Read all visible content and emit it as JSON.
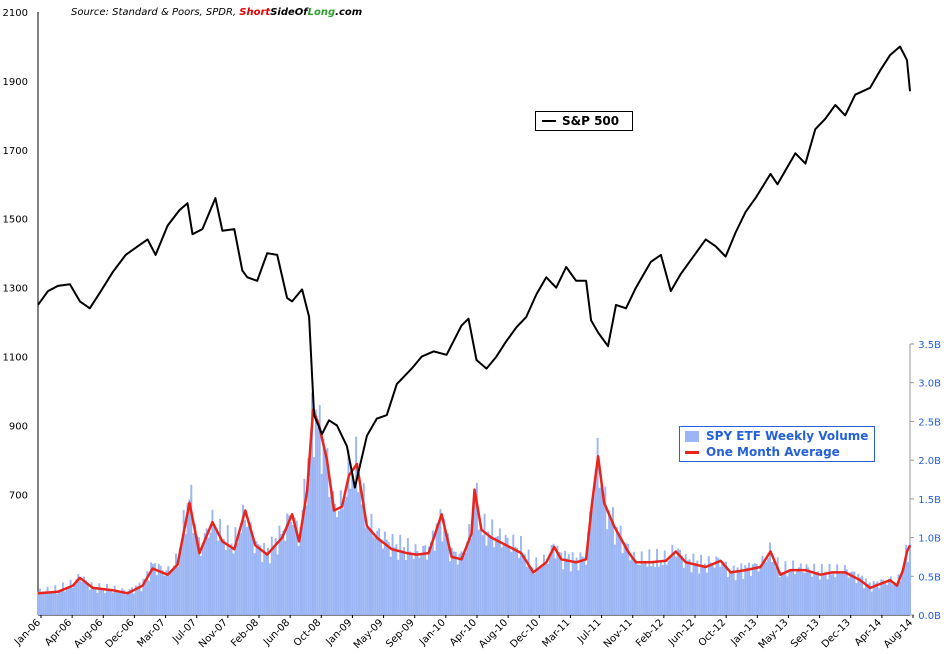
{
  "source": {
    "prefix": "Source: Standard & Poors, SPDR, ",
    "brand_short": "Short",
    "brand_side": "SideOf",
    "brand_long": "Long",
    "brand_com": ".com"
  },
  "colors": {
    "sp500": "#000000",
    "volume": "#9bb5f5",
    "average": "#e8251c",
    "right_axis": "#2461d9",
    "grid": "#d9d9d9"
  },
  "legend_sp500": "S&P 500",
  "legend_volume": "SPY ETF Weekly Volume",
  "legend_average": "One Month Average",
  "chart_data": {
    "type": "line+bar",
    "left_axis": {
      "ticks": [
        700,
        900,
        1100,
        1300,
        1500,
        1700,
        1900,
        2100
      ],
      "labels": [
        "700",
        "900",
        "1100",
        "1300",
        "1500",
        "1700",
        "1900",
        "2100"
      ],
      "range": [
        350,
        2100
      ]
    },
    "right_axis": {
      "ticks": [
        0,
        0.5,
        1.0,
        1.5,
        2.0,
        2.5,
        3.0,
        3.5
      ],
      "labels": [
        "0.0B",
        "0.5B",
        "1.0B",
        "1.5B",
        "2.0B",
        "2.5B",
        "3.0B",
        "3.5B"
      ],
      "range": [
        0,
        3.5
      ],
      "unit": "B"
    },
    "x_labels": [
      "Jan-06",
      "Apr-06",
      "Aug-06",
      "Dec-06",
      "Mar-07",
      "Jul-07",
      "Nov-07",
      "Feb-08",
      "Jun-08",
      "Oct-08",
      "Jan-09",
      "May-09",
      "Sep-09",
      "Jan-10",
      "Apr-10",
      "Aug-10",
      "Dec-10",
      "Mar-11",
      "Jul-11",
      "Nov-11",
      "Feb-12",
      "Jun-12",
      "Oct-12",
      "Jan-13",
      "May-13",
      "Sep-13",
      "Dec-13",
      "Apr-14",
      "Aug-14"
    ],
    "x_range_years": [
      2006.0,
      2014.75
    ],
    "series": [
      {
        "name": "S&P 500",
        "axis": "left",
        "points": [
          [
            2006.0,
            1250
          ],
          [
            2006.1,
            1290
          ],
          [
            2006.2,
            1305
          ],
          [
            2006.32,
            1310
          ],
          [
            2006.42,
            1260
          ],
          [
            2006.52,
            1240
          ],
          [
            2006.62,
            1285
          ],
          [
            2006.75,
            1345
          ],
          [
            2006.88,
            1395
          ],
          [
            2007.0,
            1420
          ],
          [
            2007.1,
            1440
          ],
          [
            2007.18,
            1395
          ],
          [
            2007.3,
            1480
          ],
          [
            2007.42,
            1525
          ],
          [
            2007.5,
            1545
          ],
          [
            2007.55,
            1455
          ],
          [
            2007.65,
            1470
          ],
          [
            2007.78,
            1560
          ],
          [
            2007.85,
            1465
          ],
          [
            2007.97,
            1470
          ],
          [
            2008.05,
            1350
          ],
          [
            2008.1,
            1330
          ],
          [
            2008.2,
            1320
          ],
          [
            2008.3,
            1400
          ],
          [
            2008.4,
            1395
          ],
          [
            2008.5,
            1270
          ],
          [
            2008.55,
            1260
          ],
          [
            2008.65,
            1295
          ],
          [
            2008.72,
            1215
          ],
          [
            2008.77,
            930
          ],
          [
            2008.85,
            875
          ],
          [
            2008.92,
            915
          ],
          [
            2009.0,
            900
          ],
          [
            2009.1,
            840
          ],
          [
            2009.18,
            720
          ],
          [
            2009.3,
            870
          ],
          [
            2009.4,
            920
          ],
          [
            2009.5,
            930
          ],
          [
            2009.6,
            1020
          ],
          [
            2009.75,
            1065
          ],
          [
            2009.85,
            1100
          ],
          [
            2009.97,
            1115
          ],
          [
            2010.1,
            1105
          ],
          [
            2010.25,
            1190
          ],
          [
            2010.32,
            1210
          ],
          [
            2010.4,
            1090
          ],
          [
            2010.5,
            1065
          ],
          [
            2010.6,
            1100
          ],
          [
            2010.7,
            1145
          ],
          [
            2010.8,
            1185
          ],
          [
            2010.9,
            1215
          ],
          [
            2011.0,
            1280
          ],
          [
            2011.1,
            1330
          ],
          [
            2011.2,
            1300
          ],
          [
            2011.3,
            1360
          ],
          [
            2011.4,
            1320
          ],
          [
            2011.5,
            1320
          ],
          [
            2011.55,
            1205
          ],
          [
            2011.62,
            1170
          ],
          [
            2011.72,
            1130
          ],
          [
            2011.8,
            1250
          ],
          [
            2011.9,
            1240
          ],
          [
            2012.0,
            1300
          ],
          [
            2012.15,
            1375
          ],
          [
            2012.25,
            1395
          ],
          [
            2012.35,
            1290
          ],
          [
            2012.45,
            1340
          ],
          [
            2012.55,
            1380
          ],
          [
            2012.7,
            1440
          ],
          [
            2012.8,
            1420
          ],
          [
            2012.9,
            1390
          ],
          [
            2013.0,
            1460
          ],
          [
            2013.1,
            1520
          ],
          [
            2013.2,
            1560
          ],
          [
            2013.35,
            1630
          ],
          [
            2013.42,
            1600
          ],
          [
            2013.5,
            1640
          ],
          [
            2013.6,
            1690
          ],
          [
            2013.7,
            1660
          ],
          [
            2013.8,
            1760
          ],
          [
            2013.9,
            1790
          ],
          [
            2014.0,
            1830
          ],
          [
            2014.1,
            1800
          ],
          [
            2014.2,
            1860
          ],
          [
            2014.35,
            1880
          ],
          [
            2014.45,
            1930
          ],
          [
            2014.55,
            1975
          ],
          [
            2014.65,
            2000
          ],
          [
            2014.72,
            1960
          ],
          [
            2014.75,
            1870
          ]
        ]
      },
      {
        "name": "SPY ETF Weekly Volume",
        "axis": "right",
        "points": [
          [
            2006.0,
            0.3
          ],
          [
            2006.2,
            0.32
          ],
          [
            2006.35,
            0.4
          ],
          [
            2006.42,
            0.5
          ],
          [
            2006.55,
            0.35
          ],
          [
            2006.75,
            0.33
          ],
          [
            2006.9,
            0.3
          ],
          [
            2007.05,
            0.4
          ],
          [
            2007.15,
            0.65
          ],
          [
            2007.3,
            0.55
          ],
          [
            2007.4,
            0.7
          ],
          [
            2007.52,
            1.55
          ],
          [
            2007.62,
            0.85
          ],
          [
            2007.75,
            1.2
          ],
          [
            2007.85,
            1.0
          ],
          [
            2007.97,
            0.9
          ],
          [
            2008.08,
            1.3
          ],
          [
            2008.18,
            0.9
          ],
          [
            2008.3,
            0.8
          ],
          [
            2008.45,
            1.05
          ],
          [
            2008.55,
            1.3
          ],
          [
            2008.62,
            1.0
          ],
          [
            2008.7,
            1.8
          ],
          [
            2008.76,
            2.6
          ],
          [
            2008.82,
            2.4
          ],
          [
            2008.9,
            2.0
          ],
          [
            2008.97,
            1.4
          ],
          [
            2009.05,
            1.4
          ],
          [
            2009.12,
            1.8
          ],
          [
            2009.2,
            1.9
          ],
          [
            2009.3,
            1.2
          ],
          [
            2009.4,
            1.05
          ],
          [
            2009.55,
            0.9
          ],
          [
            2009.7,
            0.85
          ],
          [
            2009.8,
            0.8
          ],
          [
            2009.92,
            0.85
          ],
          [
            2010.05,
            1.25
          ],
          [
            2010.15,
            0.8
          ],
          [
            2010.25,
            0.75
          ],
          [
            2010.35,
            1.1
          ],
          [
            2010.38,
            1.6
          ],
          [
            2010.45,
            1.1
          ],
          [
            2010.55,
            1.05
          ],
          [
            2010.7,
            0.95
          ],
          [
            2010.85,
            0.85
          ],
          [
            2010.97,
            0.6
          ],
          [
            2011.1,
            0.7
          ],
          [
            2011.18,
            0.9
          ],
          [
            2011.25,
            0.75
          ],
          [
            2011.4,
            0.7
          ],
          [
            2011.5,
            0.75
          ],
          [
            2011.56,
            1.5
          ],
          [
            2011.62,
            2.05
          ],
          [
            2011.68,
            1.45
          ],
          [
            2011.78,
            1.15
          ],
          [
            2011.92,
            0.85
          ],
          [
            2012.0,
            0.7
          ],
          [
            2012.15,
            0.7
          ],
          [
            2012.3,
            0.7
          ],
          [
            2012.4,
            0.85
          ],
          [
            2012.5,
            0.7
          ],
          [
            2012.7,
            0.65
          ],
          [
            2012.85,
            0.7
          ],
          [
            2012.95,
            0.55
          ],
          [
            2013.1,
            0.6
          ],
          [
            2013.25,
            0.65
          ],
          [
            2013.35,
            0.8
          ],
          [
            2013.45,
            0.55
          ],
          [
            2013.55,
            0.6
          ],
          [
            2013.7,
            0.6
          ],
          [
            2013.85,
            0.55
          ],
          [
            2013.97,
            0.55
          ],
          [
            2014.1,
            0.58
          ],
          [
            2014.25,
            0.48
          ],
          [
            2014.35,
            0.38
          ],
          [
            2014.45,
            0.42
          ],
          [
            2014.55,
            0.45
          ],
          [
            2014.62,
            0.4
          ],
          [
            2014.68,
            0.6
          ],
          [
            2014.72,
            0.8
          ],
          [
            2014.75,
            0.9
          ]
        ]
      },
      {
        "name": "One Month Average",
        "axis": "right",
        "points": [
          [
            2006.0,
            0.28
          ],
          [
            2006.2,
            0.3
          ],
          [
            2006.35,
            0.38
          ],
          [
            2006.42,
            0.48
          ],
          [
            2006.55,
            0.35
          ],
          [
            2006.75,
            0.32
          ],
          [
            2006.9,
            0.28
          ],
          [
            2007.05,
            0.38
          ],
          [
            2007.15,
            0.6
          ],
          [
            2007.3,
            0.52
          ],
          [
            2007.4,
            0.65
          ],
          [
            2007.52,
            1.45
          ],
          [
            2007.62,
            0.8
          ],
          [
            2007.75,
            1.2
          ],
          [
            2007.85,
            0.95
          ],
          [
            2007.97,
            0.85
          ],
          [
            2008.08,
            1.35
          ],
          [
            2008.18,
            0.9
          ],
          [
            2008.3,
            0.78
          ],
          [
            2008.45,
            1.0
          ],
          [
            2008.55,
            1.3
          ],
          [
            2008.62,
            0.95
          ],
          [
            2008.7,
            1.6
          ],
          [
            2008.76,
            2.65
          ],
          [
            2008.82,
            2.45
          ],
          [
            2008.9,
            2.0
          ],
          [
            2008.97,
            1.35
          ],
          [
            2009.05,
            1.4
          ],
          [
            2009.12,
            1.8
          ],
          [
            2009.2,
            1.95
          ],
          [
            2009.3,
            1.15
          ],
          [
            2009.4,
            1.0
          ],
          [
            2009.55,
            0.85
          ],
          [
            2009.7,
            0.8
          ],
          [
            2009.8,
            0.78
          ],
          [
            2009.92,
            0.8
          ],
          [
            2010.05,
            1.3
          ],
          [
            2010.15,
            0.75
          ],
          [
            2010.25,
            0.72
          ],
          [
            2010.35,
            1.05
          ],
          [
            2010.38,
            1.62
          ],
          [
            2010.45,
            1.1
          ],
          [
            2010.55,
            1.0
          ],
          [
            2010.7,
            0.9
          ],
          [
            2010.85,
            0.8
          ],
          [
            2010.97,
            0.55
          ],
          [
            2011.1,
            0.68
          ],
          [
            2011.18,
            0.88
          ],
          [
            2011.25,
            0.72
          ],
          [
            2011.4,
            0.68
          ],
          [
            2011.5,
            0.72
          ],
          [
            2011.56,
            1.45
          ],
          [
            2011.62,
            2.05
          ],
          [
            2011.68,
            1.45
          ],
          [
            2011.78,
            1.15
          ],
          [
            2011.92,
            0.82
          ],
          [
            2012.0,
            0.68
          ],
          [
            2012.15,
            0.68
          ],
          [
            2012.3,
            0.7
          ],
          [
            2012.4,
            0.82
          ],
          [
            2012.5,
            0.68
          ],
          [
            2012.7,
            0.62
          ],
          [
            2012.85,
            0.7
          ],
          [
            2012.95,
            0.55
          ],
          [
            2013.1,
            0.58
          ],
          [
            2013.25,
            0.62
          ],
          [
            2013.35,
            0.82
          ],
          [
            2013.45,
            0.52
          ],
          [
            2013.55,
            0.58
          ],
          [
            2013.7,
            0.58
          ],
          [
            2013.85,
            0.52
          ],
          [
            2013.97,
            0.55
          ],
          [
            2014.1,
            0.55
          ],
          [
            2014.25,
            0.45
          ],
          [
            2014.35,
            0.35
          ],
          [
            2014.45,
            0.4
          ],
          [
            2014.55,
            0.45
          ],
          [
            2014.62,
            0.38
          ],
          [
            2014.68,
            0.58
          ],
          [
            2014.72,
            0.82
          ],
          [
            2014.75,
            0.9
          ]
        ]
      }
    ]
  }
}
